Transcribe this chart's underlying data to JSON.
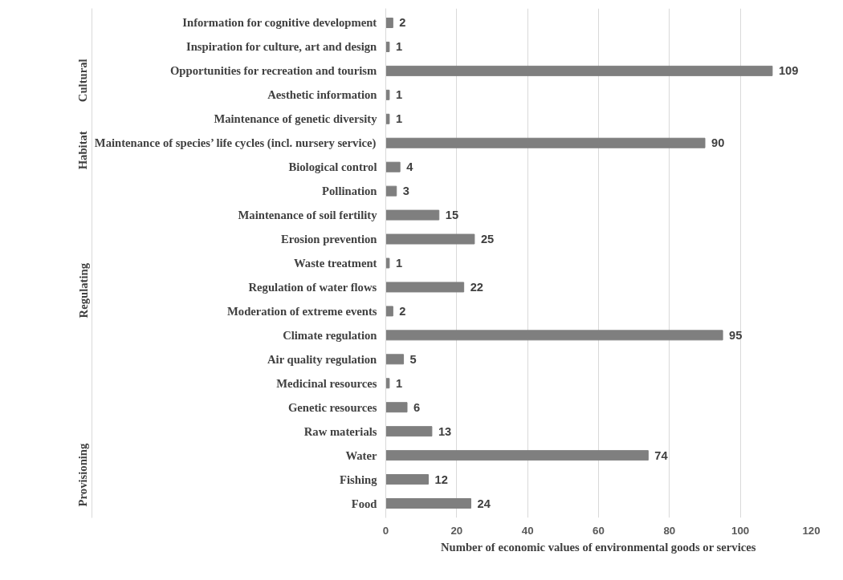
{
  "chart_data": {
    "type": "bar",
    "orientation": "horizontal",
    "xlabel": "Number of economic values of environmental goods or services",
    "categories": [
      "Information for cognitive development",
      "Inspiration for culture, art and design",
      "Opportunities for recreation and tourism",
      "Aesthetic information",
      "Maintenance of genetic diversity",
      "Maintenance of species’ life cycles (incl. nursery service)",
      "Biological control",
      "Pollination",
      "Maintenance of soil fertility",
      "Erosion prevention",
      "Waste treatment",
      "Regulation of water flows",
      "Moderation of extreme events",
      "Climate regulation",
      "Air quality regulation",
      "Medicinal resources",
      "Genetic resources",
      "Raw materials",
      "Water",
      "Fishing",
      "Food"
    ],
    "values": [
      2,
      1,
      109,
      1,
      1,
      90,
      4,
      3,
      15,
      25,
      1,
      22,
      2,
      95,
      5,
      1,
      6,
      13,
      74,
      12,
      24
    ],
    "color": "#7f7f7f",
    "xlim": [
      0,
      120
    ],
    "xticks": [
      0,
      20,
      40,
      60,
      80,
      100,
      120
    ],
    "grid": "x",
    "data_labels": true,
    "annotations": [
      "Cultural",
      "Habitat",
      "Regulating",
      "Provisioning"
    ]
  }
}
